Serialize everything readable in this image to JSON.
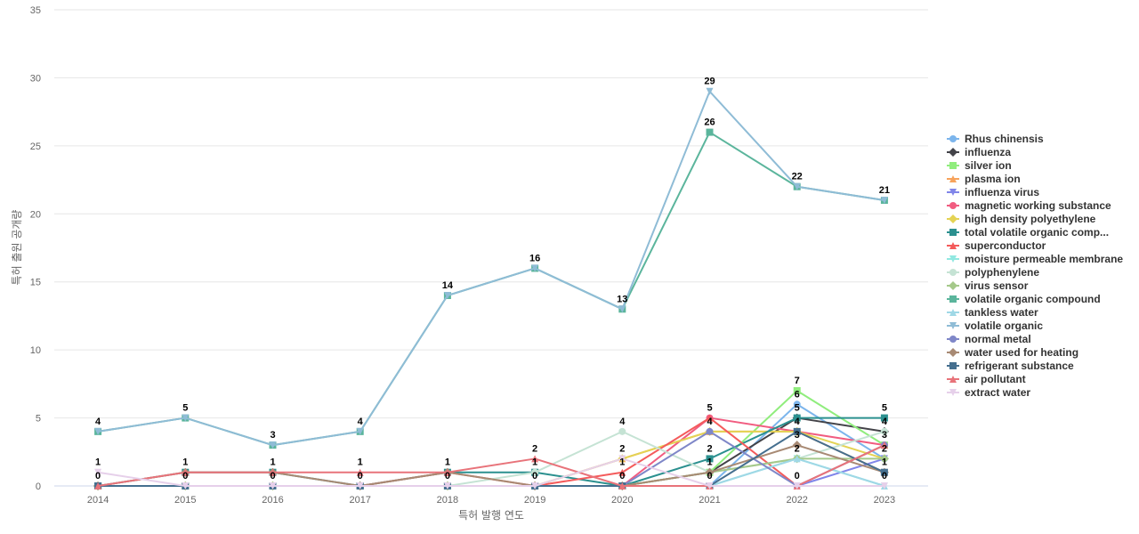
{
  "chart_data": {
    "type": "line",
    "title": "",
    "xlabel": "특허 발행 연도",
    "ylabel": "특허 출원 공개량",
    "x": [
      "2014",
      "2015",
      "2016",
      "2017",
      "2018",
      "2019",
      "2020",
      "2021",
      "2022",
      "2023"
    ],
    "ylim": [
      0,
      35
    ],
    "yticks": [
      0,
      5,
      10,
      15,
      20,
      25,
      30,
      35
    ],
    "grid": true,
    "legend_position": "right",
    "series": [
      {
        "name": "Rhus chinensis",
        "color": "#7cb5ec",
        "marker": "circle",
        "values": [
          0,
          0,
          0,
          0,
          0,
          0,
          0,
          0,
          6,
          2
        ]
      },
      {
        "name": "influenza",
        "color": "#434348",
        "marker": "diamond",
        "values": [
          0,
          0,
          0,
          0,
          0,
          0,
          0,
          1,
          5,
          4
        ]
      },
      {
        "name": "silver ion",
        "color": "#90ed7d",
        "marker": "square",
        "values": [
          0,
          0,
          0,
          0,
          0,
          0,
          0,
          1,
          7,
          3
        ]
      },
      {
        "name": "plasma ion",
        "color": "#f7a35c",
        "marker": "triangle",
        "values": [
          0,
          0,
          0,
          0,
          0,
          0,
          2,
          4,
          4,
          1
        ]
      },
      {
        "name": "influenza virus",
        "color": "#8085e9",
        "marker": "triangle-down",
        "values": [
          0,
          0,
          0,
          0,
          0,
          0,
          0,
          0,
          0,
          2
        ]
      },
      {
        "name": "magnetic working substance",
        "color": "#f15c80",
        "marker": "circle",
        "values": [
          0,
          0,
          0,
          0,
          0,
          0,
          0,
          5,
          4,
          3
        ]
      },
      {
        "name": "high density polyethylene",
        "color": "#e4d354",
        "marker": "diamond",
        "values": [
          0,
          0,
          0,
          0,
          0,
          0,
          2,
          4,
          4,
          2
        ]
      },
      {
        "name": "total volatile organic comp...",
        "color": "#2b908f",
        "marker": "square",
        "values": [
          0,
          1,
          1,
          0,
          1,
          1,
          0,
          2,
          5,
          5
        ]
      },
      {
        "name": "superconductor",
        "color": "#f45b5b",
        "marker": "triangle",
        "values": [
          0,
          0,
          0,
          0,
          1,
          0,
          1,
          5,
          0,
          3
        ]
      },
      {
        "name": "moisture permeable membrane",
        "color": "#91e8e1",
        "marker": "triangle-down",
        "values": [
          0,
          0,
          0,
          0,
          0,
          0,
          0,
          0,
          2,
          0
        ]
      },
      {
        "name": "polyphenylene",
        "color": "#c5e3d4",
        "marker": "circle",
        "values": [
          0,
          0,
          0,
          0,
          0,
          1,
          4,
          1,
          2,
          4
        ]
      },
      {
        "name": "virus sensor",
        "color": "#a5c98a",
        "marker": "diamond",
        "values": [
          0,
          0,
          0,
          0,
          0,
          0,
          0,
          1,
          2,
          2
        ]
      },
      {
        "name": "volatile organic compound",
        "color": "#5bb59c",
        "marker": "square",
        "values": [
          4,
          5,
          3,
          4,
          14,
          16,
          13,
          26,
          22,
          21
        ]
      },
      {
        "name": "tankless water",
        "color": "#9fd8e6",
        "marker": "triangle",
        "values": [
          0,
          0,
          0,
          0,
          0,
          0,
          0,
          0,
          2,
          0
        ]
      },
      {
        "name": "volatile organic",
        "color": "#8fbcd6",
        "marker": "triangle-down",
        "values": [
          4,
          5,
          3,
          4,
          14,
          16,
          13,
          29,
          22,
          21
        ]
      },
      {
        "name": "normal metal",
        "color": "#7f87c8",
        "marker": "circle",
        "values": [
          0,
          0,
          0,
          0,
          0,
          0,
          0,
          4,
          0,
          3
        ]
      },
      {
        "name": "water used for heating",
        "color": "#a88a74",
        "marker": "diamond",
        "values": [
          0,
          1,
          1,
          0,
          1,
          0,
          0,
          1,
          3,
          1
        ]
      },
      {
        "name": "refrigerant substance",
        "color": "#456f8f",
        "marker": "square",
        "values": [
          0,
          0,
          0,
          0,
          0,
          0,
          0,
          0,
          4,
          1
        ]
      },
      {
        "name": "air pollutant",
        "color": "#e8737a",
        "marker": "triangle",
        "values": [
          0,
          1,
          1,
          1,
          1,
          2,
          0,
          0,
          0,
          3
        ]
      },
      {
        "name": "extract water",
        "color": "#e6d0ea",
        "marker": "triangle-down",
        "values": [
          1,
          0,
          0,
          0,
          0,
          0,
          2,
          0,
          0,
          0
        ]
      }
    ]
  }
}
